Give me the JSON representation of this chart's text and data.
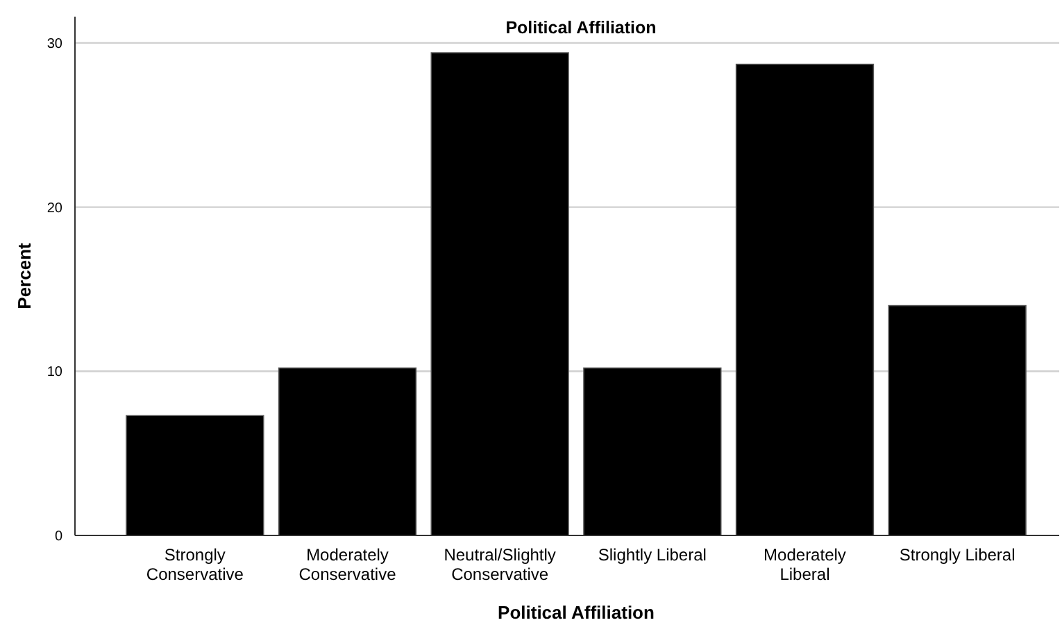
{
  "chart_data": {
    "type": "bar",
    "title": "Political Affiliation",
    "xlabel": "Political Affiliation",
    "ylabel": "Percent",
    "categories": [
      "Strongly Conservative",
      "Moderately Conservative",
      "Neutral/Slightly Conservative",
      "Slightly Liberal",
      "Moderately Liberal",
      "Strongly Liberal"
    ],
    "values": [
      7.3,
      10.2,
      29.4,
      10.2,
      28.7,
      14.0
    ],
    "color": "#000000",
    "ylim": [
      0,
      31.6
    ],
    "yticks": [
      0,
      10,
      20,
      30
    ],
    "grid": "y"
  }
}
